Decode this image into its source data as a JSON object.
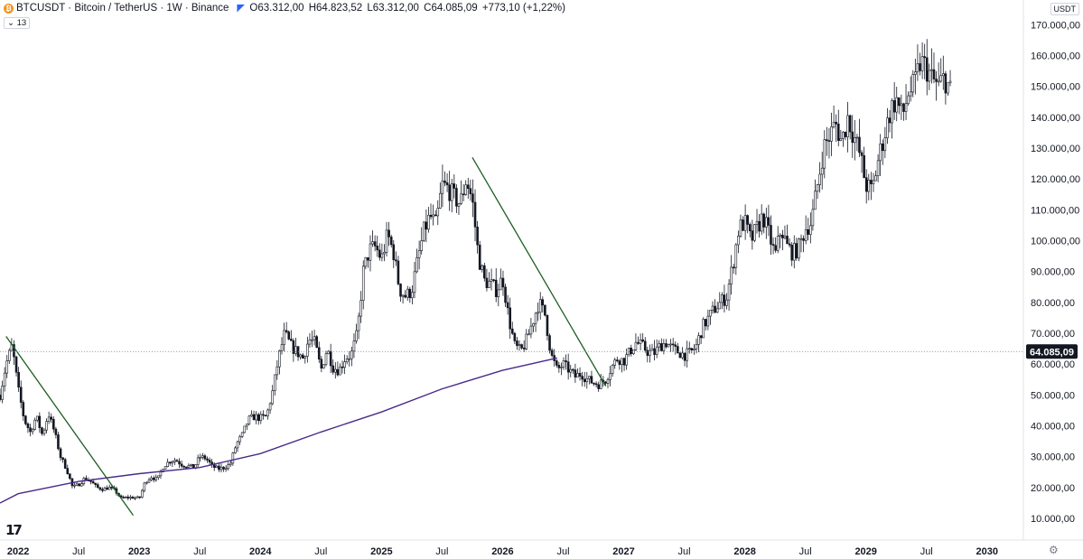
{
  "header": {
    "title": "BTCUSDT · Bitcoin / TetherUS · 1W · Binance",
    "open": "O63.312,00",
    "high": "H64.823,52",
    "low": "L63.312,00",
    "close": "C64.085,09",
    "change": "+773,10 (+1,22%)"
  },
  "indicator_badge": "13",
  "currency": "USDT",
  "colors": {
    "candle": "#131722",
    "trendline": "#1b5e20",
    "ma": "#4a2a8a",
    "axis_text": "#131722",
    "last_price_bg": "#131722"
  },
  "chart_data": {
    "type": "candlestick",
    "xlabel": "",
    "ylabel": "",
    "ylim": [
      3000,
      178000
    ],
    "xlim": [
      2021.85,
      2030.3
    ],
    "y_ticks": [
      10000,
      20000,
      30000,
      40000,
      50000,
      60000,
      70000,
      80000,
      90000,
      100000,
      110000,
      120000,
      130000,
      140000,
      150000,
      160000,
      170000
    ],
    "y_tick_labels": [
      "10.000,00",
      "20.000,00",
      "30.000,00",
      "40.000,00",
      "50.000,00",
      "60.000,00",
      "70.000,00",
      "80.000,00",
      "90.000,00",
      "100.000,00",
      "110.000,00",
      "120.000,00",
      "130.000,00",
      "140.000,00",
      "150.000,00",
      "160.000,00",
      "170.000,00"
    ],
    "x_ticks": [
      {
        "t": 2022.0,
        "label": "2022",
        "bold": true
      },
      {
        "t": 2022.5,
        "label": "Jul",
        "bold": false
      },
      {
        "t": 2023.0,
        "label": "2023",
        "bold": true
      },
      {
        "t": 2023.5,
        "label": "Jul",
        "bold": false
      },
      {
        "t": 2024.0,
        "label": "2024",
        "bold": true
      },
      {
        "t": 2024.5,
        "label": "Jul",
        "bold": false
      },
      {
        "t": 2025.0,
        "label": "2025",
        "bold": true
      },
      {
        "t": 2025.5,
        "label": "Jul",
        "bold": false
      },
      {
        "t": 2026.0,
        "label": "2026",
        "bold": true
      },
      {
        "t": 2026.5,
        "label": "Jul",
        "bold": false
      },
      {
        "t": 2027.0,
        "label": "2027",
        "bold": true
      },
      {
        "t": 2027.5,
        "label": "Jul",
        "bold": false
      },
      {
        "t": 2028.0,
        "label": "2028",
        "bold": true
      },
      {
        "t": 2028.5,
        "label": "Jul",
        "bold": false
      },
      {
        "t": 2029.0,
        "label": "2029",
        "bold": true
      },
      {
        "t": 2029.5,
        "label": "Jul",
        "bold": false
      },
      {
        "t": 2030.0,
        "label": "2030",
        "bold": true
      }
    ],
    "last_price": 64085.09,
    "last_price_label": "64.085,09",
    "price_path": [
      [
        2021.85,
        50000
      ],
      [
        2021.9,
        60000
      ],
      [
        2021.95,
        66000
      ],
      [
        2022.0,
        52000
      ],
      [
        2022.05,
        42000
      ],
      [
        2022.1,
        38000
      ],
      [
        2022.15,
        43000
      ],
      [
        2022.2,
        37000
      ],
      [
        2022.25,
        44000
      ],
      [
        2022.3,
        38000
      ],
      [
        2022.35,
        30000
      ],
      [
        2022.4,
        26000
      ],
      [
        2022.45,
        20000
      ],
      [
        2022.5,
        21000
      ],
      [
        2022.55,
        23000
      ],
      [
        2022.6,
        22000
      ],
      [
        2022.65,
        20000
      ],
      [
        2022.7,
        19500
      ],
      [
        2022.75,
        20000
      ],
      [
        2022.8,
        19000
      ],
      [
        2022.85,
        16500
      ],
      [
        2022.9,
        16800
      ],
      [
        2022.95,
        16800
      ],
      [
        2023.0,
        16500
      ],
      [
        2023.05,
        22000
      ],
      [
        2023.1,
        23500
      ],
      [
        2023.15,
        22500
      ],
      [
        2023.2,
        27000
      ],
      [
        2023.25,
        28500
      ],
      [
        2023.3,
        29000
      ],
      [
        2023.35,
        27500
      ],
      [
        2023.4,
        27000
      ],
      [
        2023.45,
        26500
      ],
      [
        2023.5,
        30000
      ],
      [
        2023.55,
        29500
      ],
      [
        2023.6,
        27000
      ],
      [
        2023.65,
        26000
      ],
      [
        2023.7,
        26500
      ],
      [
        2023.75,
        27500
      ],
      [
        2023.8,
        34000
      ],
      [
        2023.85,
        37000
      ],
      [
        2023.9,
        42000
      ],
      [
        2023.95,
        43000
      ],
      [
        2024.0,
        42500
      ],
      [
        2024.05,
        43000
      ],
      [
        2024.1,
        51000
      ],
      [
        2024.15,
        62000
      ],
      [
        2024.2,
        70000
      ],
      [
        2024.25,
        66000
      ],
      [
        2024.3,
        64000
      ],
      [
        2024.35,
        62000
      ],
      [
        2024.4,
        68000
      ],
      [
        2024.45,
        67000
      ],
      [
        2024.5,
        58000
      ],
      [
        2024.55,
        65000
      ],
      [
        2024.6,
        59000
      ],
      [
        2024.65,
        58000
      ],
      [
        2024.7,
        62000
      ],
      [
        2024.75,
        63000
      ],
      [
        2024.8,
        70000
      ],
      [
        2024.85,
        90000
      ],
      [
        2024.9,
        97000
      ],
      [
        2024.95,
        98000
      ],
      [
        2025.0,
        94000
      ],
      [
        2025.05,
        102000
      ],
      [
        2025.1,
        96000
      ],
      [
        2025.15,
        84000
      ],
      [
        2025.2,
        82000
      ],
      [
        2025.25,
        84000
      ],
      [
        2025.3,
        94000
      ],
      [
        2025.35,
        103000
      ],
      [
        2025.4,
        108000
      ],
      [
        2025.45,
        105000
      ],
      [
        2025.5,
        118000
      ],
      [
        2025.55,
        117000
      ],
      [
        2025.6,
        114000
      ],
      [
        2025.65,
        112000
      ],
      [
        2025.7,
        120000
      ],
      [
        2025.75,
        113000
      ],
      [
        2025.8,
        95000
      ],
      [
        2025.85,
        87000
      ],
      [
        2025.9,
        86000
      ],
      [
        2025.95,
        84000
      ],
      [
        2026.0,
        88000
      ],
      [
        2026.05,
        75000
      ],
      [
        2026.1,
        66000
      ],
      [
        2026.15,
        64000
      ],
      [
        2026.2,
        68000
      ],
      [
        2026.25,
        74000
      ],
      [
        2026.3,
        80000
      ],
      [
        2026.35,
        76000
      ],
      [
        2026.4,
        63000
      ],
      [
        2026.45,
        58000
      ],
      [
        2026.5,
        60000
      ],
      [
        2026.55,
        58000
      ],
      [
        2026.6,
        56000
      ],
      [
        2026.65,
        57000
      ],
      [
        2026.7,
        55000
      ],
      [
        2026.75,
        54000
      ],
      [
        2026.8,
        53500
      ],
      [
        2026.85,
        55000
      ],
      [
        2026.9,
        59000
      ],
      [
        2026.95,
        62000
      ],
      [
        2027.0,
        61000
      ],
      [
        2027.05,
        64000
      ],
      [
        2027.1,
        67000
      ],
      [
        2027.15,
        66000
      ],
      [
        2027.2,
        64000
      ],
      [
        2027.25,
        63500
      ],
      [
        2027.3,
        66000
      ],
      [
        2027.35,
        67000
      ],
      [
        2027.4,
        65000
      ],
      [
        2027.45,
        64000
      ],
      [
        2027.5,
        63000
      ],
      [
        2027.55,
        63500
      ],
      [
        2027.6,
        66000
      ],
      [
        2027.65,
        72000
      ],
      [
        2027.7,
        75000
      ],
      [
        2027.75,
        78000
      ],
      [
        2027.8,
        80000
      ],
      [
        2027.85,
        82000
      ],
      [
        2027.9,
        92000
      ],
      [
        2027.95,
        104000
      ],
      [
        2028.0,
        106000
      ],
      [
        2028.05,
        100000
      ],
      [
        2028.1,
        104000
      ],
      [
        2028.15,
        108000
      ],
      [
        2028.2,
        102000
      ],
      [
        2028.25,
        95000
      ],
      [
        2028.3,
        104000
      ],
      [
        2028.35,
        98000
      ],
      [
        2028.4,
        96000
      ],
      [
        2028.45,
        98000
      ],
      [
        2028.5,
        104000
      ],
      [
        2028.55,
        106000
      ],
      [
        2028.6,
        118000
      ],
      [
        2028.65,
        130000
      ],
      [
        2028.7,
        134000
      ],
      [
        2028.75,
        138000
      ],
      [
        2028.8,
        132000
      ],
      [
        2028.85,
        140000
      ],
      [
        2028.9,
        134000
      ],
      [
        2028.95,
        128000
      ],
      [
        2029.0,
        118000
      ],
      [
        2029.05,
        116000
      ],
      [
        2029.1,
        126000
      ],
      [
        2029.15,
        134000
      ],
      [
        2029.2,
        142000
      ],
      [
        2029.25,
        146000
      ],
      [
        2029.3,
        140000
      ],
      [
        2029.35,
        148000
      ],
      [
        2029.4,
        150000
      ],
      [
        2029.45,
        158000
      ],
      [
        2029.5,
        156000
      ],
      [
        2029.55,
        152000
      ],
      [
        2029.6,
        150000
      ],
      [
        2029.65,
        153000
      ],
      [
        2029.7,
        148000
      ]
    ],
    "ma_path": [
      [
        2021.85,
        15000
      ],
      [
        2022.0,
        18000
      ],
      [
        2022.5,
        22000
      ],
      [
        2023.0,
        24500
      ],
      [
        2023.5,
        26500
      ],
      [
        2024.0,
        31000
      ],
      [
        2024.5,
        38000
      ],
      [
        2025.0,
        44500
      ],
      [
        2025.5,
        52000
      ],
      [
        2026.0,
        58000
      ],
      [
        2026.45,
        62000
      ]
    ],
    "trendlines": [
      {
        "from": [
          2021.9,
          69000
        ],
        "to": [
          2022.95,
          11000
        ]
      },
      {
        "from": [
          2025.75,
          127000
        ],
        "to": [
          2026.85,
          53000
        ]
      }
    ]
  }
}
